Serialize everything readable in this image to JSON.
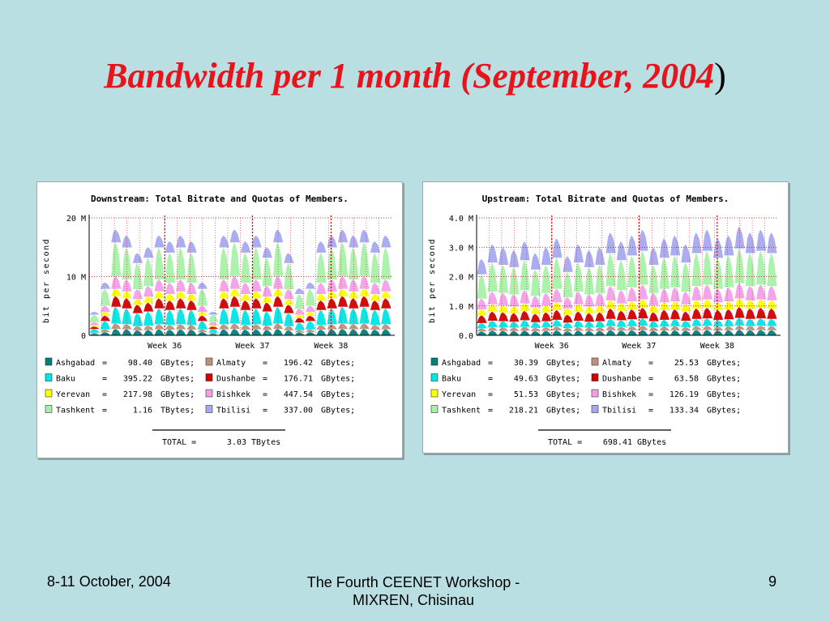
{
  "slide": {
    "title": "Bandwidth per 1 month (September, 2004",
    "title_paren": ")",
    "footer_left": "8-11 October, 2004",
    "footer_center": "The Fourth CEENET Workshop - MIXREN, Chisinau",
    "footer_right": "9"
  },
  "colors": {
    "Ashgabad": "#007f7f",
    "Baku": "#00e5e5",
    "Yerevan": "#ffff00",
    "Tashkent": "#a8f0a8",
    "Almaty": "#c0907c",
    "Dushanbe": "#d00000",
    "Bishkek": "#f3a0e8",
    "Tbilisi": "#a8a8f0"
  },
  "chart_data": [
    {
      "type": "area",
      "title": "Downstream: Total Bitrate and Quotas of Members.",
      "ylabel": "bit per second",
      "yticks": [
        "0",
        "10 M",
        "20 M"
      ],
      "ylim": [
        0,
        20
      ],
      "xticks": [
        "Week 36",
        "Week 37",
        "Week 38"
      ],
      "legend": [
        {
          "name": "Ashgabad",
          "value": "98.40",
          "unit": "GBytes;"
        },
        {
          "name": "Almaty",
          "value": "196.42",
          "unit": "GBytes;"
        },
        {
          "name": "Baku",
          "value": "395.22",
          "unit": "GBytes;"
        },
        {
          "name": "Dushanbe",
          "value": "176.71",
          "unit": "GBytes;"
        },
        {
          "name": "Yerevan",
          "value": "217.98",
          "unit": "GBytes;"
        },
        {
          "name": "Bishkek",
          "value": "447.54",
          "unit": "GBytes;"
        },
        {
          "name": "Tashkent",
          "value": "1.16",
          "unit": "TBytes;"
        },
        {
          "name": "Tbilisi",
          "value": "337.00",
          "unit": "GBytes;"
        }
      ],
      "total_label": "TOTAL =",
      "total_value": "3.03",
      "total_unit": "TBytes",
      "peaks": [
        4,
        9,
        18,
        17,
        14,
        15,
        17,
        16,
        17,
        16,
        9,
        4,
        17,
        18,
        16,
        17,
        15,
        18,
        14,
        8,
        9,
        16,
        17,
        18,
        17,
        18,
        16,
        17
      ],
      "stack_order": [
        "Ashgabad",
        "Almaty",
        "Baku",
        "Dushanbe",
        "Yerevan",
        "Bishkek",
        "Tashkent",
        "Tbilisi"
      ],
      "stack_shares": [
        0.06,
        0.05,
        0.16,
        0.1,
        0.07,
        0.12,
        0.32,
        0.12
      ]
    },
    {
      "type": "area",
      "title": "Upstream: Total Bitrate and Quotas of Members.",
      "ylabel": "bit per second",
      "yticks": [
        "0.0",
        "1.0 M",
        "2.0 M",
        "3.0 M",
        "4.0 M"
      ],
      "ylim": [
        0,
        4
      ],
      "xticks": [
        "Week 36",
        "Week 37",
        "Week 38"
      ],
      "legend": [
        {
          "name": "Ashgabad",
          "value": "30.39",
          "unit": "GBytes;"
        },
        {
          "name": "Almaty",
          "value": "25.53",
          "unit": "GBytes;"
        },
        {
          "name": "Baku",
          "value": "49.63",
          "unit": "GBytes;"
        },
        {
          "name": "Dushanbe",
          "value": "63.58",
          "unit": "GBytes;"
        },
        {
          "name": "Yerevan",
          "value": "51.53",
          "unit": "GBytes;"
        },
        {
          "name": "Bishkek",
          "value": "126.19",
          "unit": "GBytes;"
        },
        {
          "name": "Tashkent",
          "value": "218.21",
          "unit": "GBytes;"
        },
        {
          "name": "Tbilisi",
          "value": "133.34",
          "unit": "GBytes;"
        }
      ],
      "total_label": "TOTAL =",
      "total_value": "698.41",
      "total_unit": "GBytes",
      "peaks": [
        2.6,
        3.1,
        3.0,
        2.9,
        3.2,
        2.8,
        3.0,
        3.3,
        2.7,
        3.1,
        2.9,
        3.0,
        3.5,
        3.2,
        3.4,
        3.6,
        3.0,
        3.3,
        3.4,
        3.1,
        3.5,
        3.6,
        3.3,
        3.4,
        3.7,
        3.5,
        3.6,
        3.5
      ],
      "stack_order": [
        "Ashgabad",
        "Almaty",
        "Baku",
        "Dushanbe",
        "Yerevan",
        "Bishkek",
        "Tashkent",
        "Tbilisi"
      ],
      "stack_shares": [
        0.05,
        0.04,
        0.07,
        0.1,
        0.08,
        0.14,
        0.32,
        0.2
      ]
    }
  ]
}
